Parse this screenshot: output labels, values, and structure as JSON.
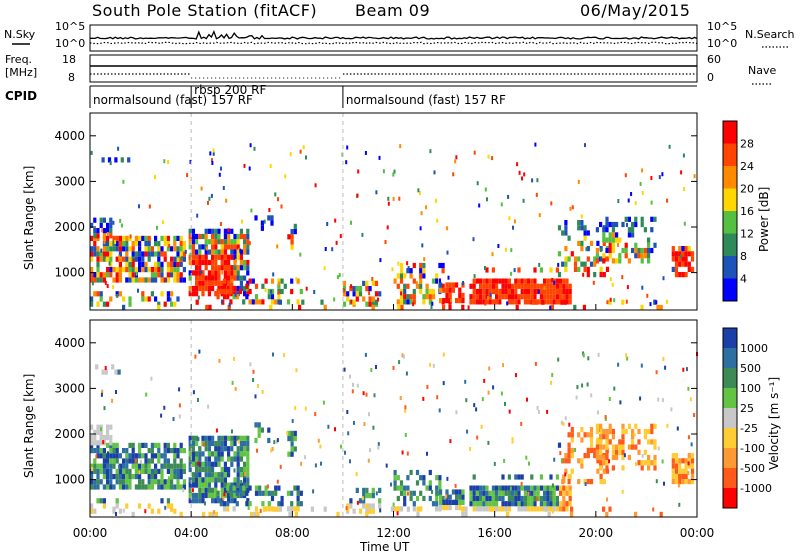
{
  "header": {
    "title": "South Pole Station (fitACF)",
    "beam": "Beam 09",
    "date": "06/May/2015"
  },
  "left_labels": {
    "nsky": "N.Sky",
    "freq_line1": "Freq.",
    "freq_line2": "[MHz]",
    "cpid": "CPID"
  },
  "right_labels": {
    "nsearch": "N.Search",
    "nave": "Nave"
  },
  "chart_data": [
    {
      "type": "line",
      "name": "noise-panel",
      "y_left_ticks": [
        "10^5",
        "10^0"
      ],
      "y_right_ticks": [
        "10^5",
        "10^0"
      ],
      "series": [
        {
          "name": "N.Sky"
        },
        {
          "name": "N.Search"
        }
      ]
    },
    {
      "type": "line",
      "name": "freq-nave-panel",
      "y_left_ticks": [
        "18",
        "8"
      ],
      "y_right_ticks": [
        "60",
        "0"
      ],
      "series": [
        {
          "name": "Freq."
        },
        {
          "name": "Nave"
        }
      ]
    },
    {
      "type": "table",
      "name": "cpid-panel",
      "segments": [
        {
          "start_h": 0,
          "end_h": 4.0,
          "label": "normalsound (fast) 157 RF"
        },
        {
          "start_h": 4.0,
          "end_h": 10.0,
          "label": "rbsp 200 RF"
        },
        {
          "start_h": 10.0,
          "end_h": 24,
          "label": "normalsound (fast) 157 RF"
        }
      ]
    },
    {
      "type": "heatmap",
      "name": "power-panel",
      "xlabel": "",
      "ylabel": "Slant Range [km]",
      "xlim": [
        0,
        24
      ],
      "ylim": [
        180,
        4500
      ],
      "y_ticks": [
        "1000",
        "2000",
        "3000",
        "4000"
      ],
      "colorbar": {
        "label": "Power [dB]",
        "ticks": [
          "4",
          "8",
          "12",
          "16",
          "20",
          "24",
          "28"
        ],
        "colors": [
          "#0000ff",
          "#1d52b8",
          "#2f8a5a",
          "#55c040",
          "#ffd700",
          "#ff8a00",
          "#ff4500",
          "#ff0000"
        ]
      }
    },
    {
      "type": "heatmap",
      "name": "velocity-panel",
      "xlabel": "Time UT",
      "ylabel": "Slant Range [km]",
      "xlim": [
        0,
        24
      ],
      "ylim": [
        180,
        4500
      ],
      "y_ticks": [
        "1000",
        "2000",
        "3000",
        "4000"
      ],
      "x_ticks": [
        "00:00",
        "04:00",
        "08:00",
        "12:00",
        "16:00",
        "20:00",
        "00:00"
      ],
      "colorbar": {
        "label": "Velocity [m s⁻¹]",
        "ticks": [
          "1000",
          "500",
          "100",
          "25",
          "-25",
          "-100",
          "-500",
          "-1000"
        ],
        "colors": [
          "#1a3fa8",
          "#2c6fa0",
          "#3c8a55",
          "#62c442",
          "#c8c8c8",
          "#ffcc33",
          "#ff9933",
          "#ff5a1a",
          "#ff0000"
        ]
      }
    }
  ]
}
